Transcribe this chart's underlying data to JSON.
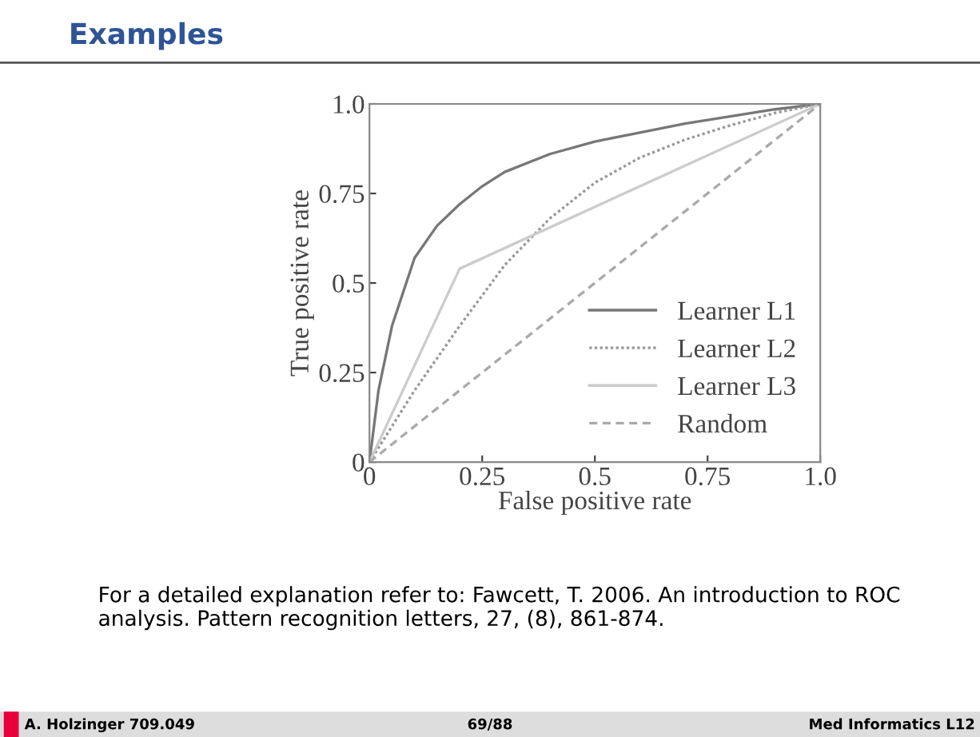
{
  "chart_data": {
    "type": "line",
    "title": "Examples",
    "xlabel": "False positive rate",
    "ylabel": "True positive rate",
    "series": [
      {
        "name": "Learner L1",
        "color": "#777777",
        "line_style": "solid",
        "x": [
          0,
          0.02,
          0.05,
          0.1,
          0.15,
          0.2,
          0.25,
          0.3,
          0.4,
          0.5,
          0.6,
          0.7,
          0.8,
          0.9,
          1
        ],
        "values": [
          0,
          0.2,
          0.38,
          0.57,
          0.66,
          0.72,
          0.77,
          0.81,
          0.86,
          0.895,
          0.92,
          0.945,
          0.965,
          0.985,
          1
        ]
      },
      {
        "name": "Learner L2",
        "color": "#999999",
        "line_style": "dotted",
        "x": [
          0,
          0.1,
          0.2,
          0.3,
          0.4,
          0.5,
          0.6,
          0.7,
          0.8,
          0.9,
          1
        ],
        "values": [
          0,
          0.2,
          0.38,
          0.55,
          0.68,
          0.78,
          0.85,
          0.9,
          0.94,
          0.975,
          1
        ]
      },
      {
        "name": "Learner L3",
        "color": "#cccccc",
        "line_style": "solid",
        "x": [
          0,
          0.2,
          1
        ],
        "values": [
          0,
          0.54,
          1
        ]
      },
      {
        "name": "Random",
        "color": "#aaaaaa",
        "line_style": "dashed",
        "x": [
          0,
          1
        ],
        "values": [
          0,
          1
        ]
      }
    ],
    "xlim": [
      0,
      1
    ],
    "ylim": [
      0,
      1
    ],
    "xticks": [
      0,
      0.25,
      0.5,
      0.75,
      {
        "value": 1,
        "label": "1.0"
      }
    ],
    "yticks": [
      0,
      0.25,
      0.5,
      0.75,
      {
        "value": 1,
        "label": "1.0"
      }
    ],
    "grid": false,
    "legend": "bottom right",
    "marker": "none",
    "annotations": [
      "For a detailed explanation refer to: Fawcett, T. 2006. An introduction to ROC analysis. Pattern recognition letters, 27, (8), 861-874.",
      "A. Holzinger 709.049",
      "69/88",
      "Med Informatics L12"
    ]
  }
}
